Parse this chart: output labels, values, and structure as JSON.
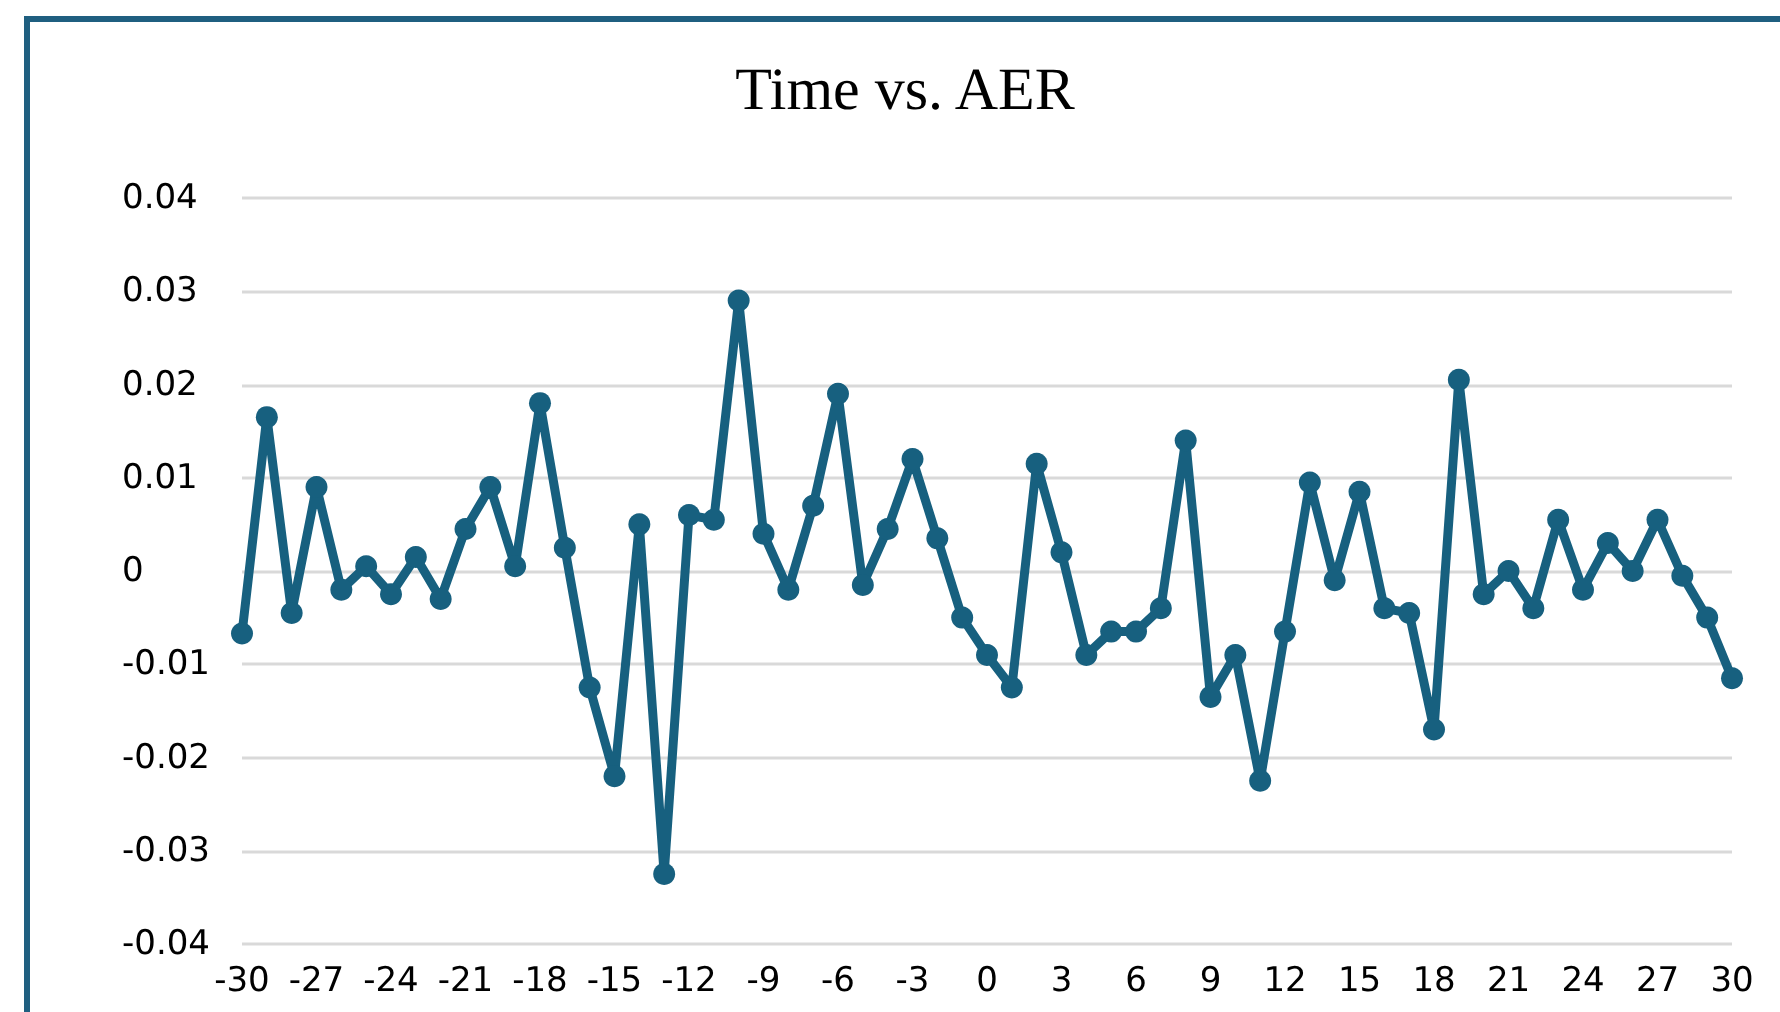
{
  "chart_data": {
    "type": "line",
    "title": "Time vs. AER",
    "categories": [
      "-30",
      null,
      null,
      "-27",
      null,
      null,
      "-24",
      null,
      null,
      "-21",
      null,
      null,
      "-18",
      null,
      null,
      "-15",
      null,
      null,
      "-12",
      null,
      null,
      "-9",
      null,
      null,
      "-6",
      null,
      null,
      "-3",
      null,
      null,
      "0",
      null,
      null,
      "3",
      null,
      null,
      "6",
      null,
      null,
      "9",
      null,
      null,
      "12",
      null,
      null,
      "15",
      null,
      null,
      "18",
      null,
      null,
      "21",
      null,
      null,
      "24",
      null,
      null,
      "27",
      null,
      null,
      "30"
    ],
    "series": [
      {
        "color": "#17607f",
        "values": [
          -0.0067,
          0.0165,
          -0.0045,
          0.009,
          -0.002,
          0.0005,
          -0.0025,
          0.0015,
          -0.003,
          0.0045,
          0.009,
          0.0005,
          0.018,
          0.0025,
          -0.0125,
          -0.022,
          0.005,
          -0.0325,
          0.006,
          0.0055,
          0.029,
          0.004,
          -0.002,
          0.007,
          0.019,
          -0.0015,
          0.0045,
          0.012,
          0.0035,
          -0.005,
          -0.009,
          -0.0125,
          0.0115,
          0.002,
          -0.009,
          -0.0065,
          -0.0065,
          -0.004,
          0.014,
          -0.0135,
          -0.009,
          -0.0225,
          -0.0065,
          0.0095,
          -0.001,
          0.0085,
          -0.004,
          -0.0045,
          -0.017,
          0.0205,
          -0.0025,
          0,
          -0.004,
          0.0055,
          -0.002,
          0.003,
          0,
          0.0055,
          -0.0005,
          -0.005,
          -0.0115
        ]
      }
    ],
    "ylim": [
      -0.04,
      0.04
    ],
    "yticks": [
      -0.04,
      -0.03,
      -0.02,
      -0.01,
      0,
      0.01,
      0.02,
      0.03,
      0.04
    ],
    "grid": "y",
    "marker": "circle",
    "line_style": "solid"
  }
}
